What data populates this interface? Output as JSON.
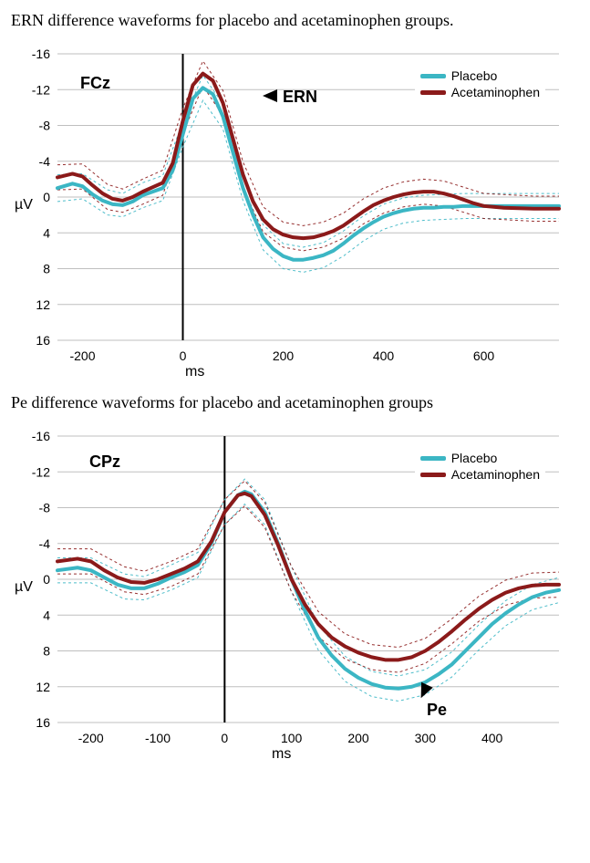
{
  "top_caption": "ERN difference waveforms for placebo and acetaminophen groups.",
  "bottom_caption": "Pe difference waveforms for placebo and acetaminophen groups",
  "legend": {
    "placebo": "Placebo",
    "acetaminophen": "Acetaminophen"
  },
  "colors": {
    "placebo": "#3bb6c4",
    "acetaminophen": "#8b1a1a",
    "placebo_band": "#3bb6c4",
    "acet_band": "#8b1a1a",
    "grid": "#bfbfbf",
    "axis": "#000000",
    "background": "#ffffff",
    "text": "#000000"
  },
  "style": {
    "main_line_width": 4,
    "band_line_width": 1,
    "band_dash": "3,3",
    "font_family_axis": "Arial, sans-serif",
    "tick_fontsize": 14,
    "electrode_fontsize": 18,
    "annotation_fontsize": 18
  },
  "chart1": {
    "type": "line",
    "electrode": "FCz",
    "annotation": "ERN",
    "annotation_pos_ms": 130,
    "annotation_pos_uv": -12,
    "y_unit": "µV",
    "x_unit": "ms",
    "xlim": [
      -250,
      750
    ],
    "ylim_display": [
      -16,
      16
    ],
    "y_inverted": true,
    "xticks": [
      -200,
      0,
      200,
      400,
      600
    ],
    "yticks": [
      -16,
      -12,
      -8,
      -4,
      0,
      4,
      8,
      12,
      16
    ],
    "grid": true,
    "series": {
      "placebo": [
        [
          -250,
          -1.0
        ],
        [
          -220,
          -1.5
        ],
        [
          -200,
          -1.2
        ],
        [
          -180,
          -0.3
        ],
        [
          -160,
          0.4
        ],
        [
          -140,
          0.8
        ],
        [
          -120,
          0.9
        ],
        [
          -100,
          0.5
        ],
        [
          -80,
          -0.2
        ],
        [
          -60,
          -0.6
        ],
        [
          -40,
          -1.0
        ],
        [
          -20,
          -3.0
        ],
        [
          0,
          -7.0
        ],
        [
          20,
          -11.0
        ],
        [
          40,
          -12.2
        ],
        [
          60,
          -11.5
        ],
        [
          80,
          -9.0
        ],
        [
          100,
          -5.0
        ],
        [
          120,
          -1.0
        ],
        [
          140,
          2.0
        ],
        [
          160,
          4.5
        ],
        [
          180,
          5.8
        ],
        [
          200,
          6.6
        ],
        [
          220,
          7.0
        ],
        [
          240,
          7.0
        ],
        [
          260,
          6.8
        ],
        [
          280,
          6.5
        ],
        [
          300,
          6.0
        ],
        [
          320,
          5.2
        ],
        [
          340,
          4.3
        ],
        [
          360,
          3.5
        ],
        [
          380,
          2.8
        ],
        [
          400,
          2.2
        ],
        [
          420,
          1.8
        ],
        [
          440,
          1.5
        ],
        [
          460,
          1.3
        ],
        [
          480,
          1.2
        ],
        [
          500,
          1.2
        ],
        [
          520,
          1.1
        ],
        [
          540,
          1.1
        ],
        [
          560,
          1.0
        ],
        [
          580,
          1.0
        ],
        [
          600,
          1.0
        ],
        [
          640,
          1.0
        ],
        [
          700,
          1.0
        ],
        [
          750,
          1.0
        ]
      ],
      "placebo_upper": [
        [
          -250,
          -2.5
        ],
        [
          -200,
          -2.6
        ],
        [
          -150,
          -0.8
        ],
        [
          -120,
          -0.4
        ],
        [
          -80,
          -1.6
        ],
        [
          -40,
          -2.4
        ],
        [
          0,
          -8.4
        ],
        [
          40,
          -13.6
        ],
        [
          80,
          -10.4
        ],
        [
          120,
          -2.4
        ],
        [
          160,
          3.1
        ],
        [
          200,
          5.2
        ],
        [
          240,
          5.6
        ],
        [
          280,
          5.1
        ],
        [
          320,
          3.8
        ],
        [
          360,
          2.1
        ],
        [
          400,
          0.8
        ],
        [
          440,
          0.1
        ],
        [
          480,
          -0.2
        ],
        [
          520,
          -0.3
        ],
        [
          560,
          -0.4
        ],
        [
          600,
          -0.4
        ],
        [
          700,
          -0.4
        ],
        [
          750,
          -0.4
        ]
      ],
      "placebo_lower": [
        [
          -250,
          0.5
        ],
        [
          -200,
          0.2
        ],
        [
          -150,
          2.0
        ],
        [
          -120,
          2.2
        ],
        [
          -80,
          1.2
        ],
        [
          -40,
          0.4
        ],
        [
          0,
          -5.6
        ],
        [
          40,
          -10.8
        ],
        [
          80,
          -7.6
        ],
        [
          120,
          0.4
        ],
        [
          160,
          5.9
        ],
        [
          200,
          8.0
        ],
        [
          240,
          8.4
        ],
        [
          280,
          7.9
        ],
        [
          320,
          6.6
        ],
        [
          360,
          4.9
        ],
        [
          400,
          3.6
        ],
        [
          440,
          2.9
        ],
        [
          480,
          2.6
        ],
        [
          520,
          2.5
        ],
        [
          560,
          2.4
        ],
        [
          600,
          2.4
        ],
        [
          700,
          2.4
        ],
        [
          750,
          2.4
        ]
      ],
      "acetaminophen": [
        [
          -250,
          -2.2
        ],
        [
          -220,
          -2.6
        ],
        [
          -200,
          -2.3
        ],
        [
          -180,
          -1.3
        ],
        [
          -160,
          -0.4
        ],
        [
          -140,
          0.2
        ],
        [
          -120,
          0.4
        ],
        [
          -100,
          0.0
        ],
        [
          -80,
          -0.6
        ],
        [
          -60,
          -1.1
        ],
        [
          -40,
          -1.6
        ],
        [
          -20,
          -3.8
        ],
        [
          0,
          -8.5
        ],
        [
          20,
          -12.5
        ],
        [
          40,
          -13.8
        ],
        [
          60,
          -13.0
        ],
        [
          80,
          -10.5
        ],
        [
          100,
          -6.5
        ],
        [
          120,
          -2.5
        ],
        [
          140,
          0.5
        ],
        [
          160,
          2.5
        ],
        [
          180,
          3.6
        ],
        [
          200,
          4.2
        ],
        [
          220,
          4.5
        ],
        [
          240,
          4.6
        ],
        [
          260,
          4.5
        ],
        [
          280,
          4.2
        ],
        [
          300,
          3.8
        ],
        [
          320,
          3.2
        ],
        [
          340,
          2.4
        ],
        [
          360,
          1.6
        ],
        [
          380,
          0.9
        ],
        [
          400,
          0.4
        ],
        [
          420,
          0.0
        ],
        [
          440,
          -0.3
        ],
        [
          460,
          -0.5
        ],
        [
          480,
          -0.6
        ],
        [
          500,
          -0.6
        ],
        [
          520,
          -0.4
        ],
        [
          540,
          -0.1
        ],
        [
          560,
          0.3
        ],
        [
          580,
          0.7
        ],
        [
          600,
          1.0
        ],
        [
          640,
          1.2
        ],
        [
          700,
          1.3
        ],
        [
          750,
          1.3
        ]
      ],
      "acet_upper": [
        [
          -250,
          -3.6
        ],
        [
          -200,
          -3.7
        ],
        [
          -150,
          -1.4
        ],
        [
          -120,
          -0.9
        ],
        [
          -80,
          -2.0
        ],
        [
          -40,
          -3.0
        ],
        [
          0,
          -9.9
        ],
        [
          40,
          -15.2
        ],
        [
          80,
          -11.9
        ],
        [
          120,
          -3.9
        ],
        [
          160,
          1.1
        ],
        [
          200,
          2.8
        ],
        [
          240,
          3.2
        ],
        [
          280,
          2.8
        ],
        [
          320,
          1.8
        ],
        [
          360,
          0.2
        ],
        [
          400,
          -1.0
        ],
        [
          440,
          -1.7
        ],
        [
          480,
          -2.0
        ],
        [
          520,
          -1.8
        ],
        [
          560,
          -1.1
        ],
        [
          600,
          -0.4
        ],
        [
          700,
          -0.1
        ],
        [
          750,
          -0.1
        ]
      ],
      "acet_lower": [
        [
          -250,
          -0.8
        ],
        [
          -200,
          -0.9
        ],
        [
          -150,
          1.4
        ],
        [
          -120,
          1.7
        ],
        [
          -80,
          0.8
        ],
        [
          -40,
          -0.2
        ],
        [
          0,
          -7.1
        ],
        [
          40,
          -12.4
        ],
        [
          80,
          -9.1
        ],
        [
          120,
          -1.1
        ],
        [
          160,
          3.9
        ],
        [
          200,
          5.6
        ],
        [
          240,
          6.0
        ],
        [
          280,
          5.6
        ],
        [
          320,
          4.6
        ],
        [
          360,
          3.0
        ],
        [
          400,
          1.8
        ],
        [
          440,
          1.1
        ],
        [
          480,
          0.8
        ],
        [
          520,
          1.0
        ],
        [
          560,
          1.7
        ],
        [
          600,
          2.4
        ],
        [
          700,
          2.7
        ],
        [
          750,
          2.7
        ]
      ]
    }
  },
  "chart2": {
    "type": "line",
    "electrode": "CPz",
    "annotation": "Pe",
    "annotation_pos_ms": 360,
    "annotation_pos_uv": 13,
    "y_unit": "µV",
    "x_unit": "ms",
    "xlim": [
      -250,
      500
    ],
    "ylim_display": [
      -16,
      16
    ],
    "y_inverted": true,
    "xticks": [
      -200,
      -100,
      0,
      100,
      200,
      300,
      400
    ],
    "yticks": [
      -16,
      -12,
      -8,
      -4,
      0,
      4,
      8,
      12,
      16
    ],
    "grid": true,
    "series": {
      "placebo": [
        [
          -250,
          -1.0
        ],
        [
          -220,
          -1.3
        ],
        [
          -200,
          -1.0
        ],
        [
          -180,
          -0.2
        ],
        [
          -160,
          0.6
        ],
        [
          -140,
          1.0
        ],
        [
          -120,
          1.0
        ],
        [
          -100,
          0.5
        ],
        [
          -80,
          -0.2
        ],
        [
          -60,
          -0.8
        ],
        [
          -40,
          -1.6
        ],
        [
          -20,
          -4.0
        ],
        [
          0,
          -7.5
        ],
        [
          20,
          -9.4
        ],
        [
          30,
          -9.8
        ],
        [
          40,
          -9.5
        ],
        [
          60,
          -7.5
        ],
        [
          80,
          -4.0
        ],
        [
          100,
          0.0
        ],
        [
          120,
          3.5
        ],
        [
          140,
          6.5
        ],
        [
          160,
          8.5
        ],
        [
          180,
          10.0
        ],
        [
          200,
          11.0
        ],
        [
          220,
          11.7
        ],
        [
          240,
          12.1
        ],
        [
          260,
          12.2
        ],
        [
          280,
          12.0
        ],
        [
          300,
          11.5
        ],
        [
          320,
          10.6
        ],
        [
          340,
          9.5
        ],
        [
          360,
          8.0
        ],
        [
          380,
          6.5
        ],
        [
          400,
          5.0
        ],
        [
          420,
          3.8
        ],
        [
          440,
          2.8
        ],
        [
          460,
          2.0
        ],
        [
          480,
          1.5
        ],
        [
          500,
          1.2
        ]
      ],
      "placebo_upper": [
        [
          -250,
          -2.4
        ],
        [
          -200,
          -2.4
        ],
        [
          -150,
          -0.6
        ],
        [
          -120,
          -0.3
        ],
        [
          -80,
          -1.6
        ],
        [
          -40,
          -3.0
        ],
        [
          0,
          -8.9
        ],
        [
          30,
          -11.2
        ],
        [
          60,
          -8.9
        ],
        [
          100,
          -1.4
        ],
        [
          140,
          5.1
        ],
        [
          180,
          8.6
        ],
        [
          220,
          10.3
        ],
        [
          260,
          10.8
        ],
        [
          300,
          10.1
        ],
        [
          340,
          8.1
        ],
        [
          380,
          5.1
        ],
        [
          420,
          2.4
        ],
        [
          460,
          0.6
        ],
        [
          500,
          -0.2
        ]
      ],
      "placebo_lower": [
        [
          -250,
          0.4
        ],
        [
          -200,
          0.4
        ],
        [
          -150,
          2.2
        ],
        [
          -120,
          2.3
        ],
        [
          -80,
          1.2
        ],
        [
          -40,
          -0.2
        ],
        [
          0,
          -6.1
        ],
        [
          30,
          -8.4
        ],
        [
          60,
          -6.1
        ],
        [
          100,
          1.4
        ],
        [
          140,
          7.9
        ],
        [
          180,
          11.4
        ],
        [
          220,
          13.1
        ],
        [
          260,
          13.6
        ],
        [
          300,
          12.9
        ],
        [
          340,
          10.9
        ],
        [
          380,
          7.9
        ],
        [
          420,
          5.2
        ],
        [
          460,
          3.4
        ],
        [
          500,
          2.6
        ]
      ],
      "acetaminophen": [
        [
          -250,
          -2.0
        ],
        [
          -220,
          -2.3
        ],
        [
          -200,
          -2.0
        ],
        [
          -180,
          -1.0
        ],
        [
          -160,
          -0.2
        ],
        [
          -140,
          0.3
        ],
        [
          -120,
          0.4
        ],
        [
          -100,
          0.0
        ],
        [
          -80,
          -0.6
        ],
        [
          -60,
          -1.2
        ],
        [
          -40,
          -2.0
        ],
        [
          -20,
          -4.2
        ],
        [
          0,
          -7.5
        ],
        [
          20,
          -9.4
        ],
        [
          30,
          -9.6
        ],
        [
          40,
          -9.3
        ],
        [
          60,
          -7.2
        ],
        [
          80,
          -3.8
        ],
        [
          100,
          0.0
        ],
        [
          120,
          2.8
        ],
        [
          140,
          5.0
        ],
        [
          160,
          6.5
        ],
        [
          180,
          7.5
        ],
        [
          200,
          8.2
        ],
        [
          220,
          8.7
        ],
        [
          240,
          9.0
        ],
        [
          260,
          9.0
        ],
        [
          280,
          8.7
        ],
        [
          300,
          8.0
        ],
        [
          320,
          7.0
        ],
        [
          340,
          5.8
        ],
        [
          360,
          4.5
        ],
        [
          380,
          3.3
        ],
        [
          400,
          2.3
        ],
        [
          420,
          1.5
        ],
        [
          440,
          1.0
        ],
        [
          460,
          0.7
        ],
        [
          480,
          0.6
        ],
        [
          500,
          0.6
        ]
      ],
      "acet_upper": [
        [
          -250,
          -3.4
        ],
        [
          -200,
          -3.4
        ],
        [
          -150,
          -1.4
        ],
        [
          -120,
          -0.9
        ],
        [
          -80,
          -2.0
        ],
        [
          -40,
          -3.4
        ],
        [
          0,
          -8.9
        ],
        [
          30,
          -11.0
        ],
        [
          60,
          -8.6
        ],
        [
          100,
          -1.4
        ],
        [
          140,
          3.6
        ],
        [
          180,
          6.1
        ],
        [
          220,
          7.3
        ],
        [
          260,
          7.6
        ],
        [
          300,
          6.6
        ],
        [
          340,
          4.4
        ],
        [
          380,
          1.9
        ],
        [
          420,
          0.1
        ],
        [
          460,
          -0.7
        ],
        [
          500,
          -0.8
        ]
      ],
      "acet_lower": [
        [
          -250,
          -0.6
        ],
        [
          -200,
          -0.6
        ],
        [
          -150,
          1.4
        ],
        [
          -120,
          1.7
        ],
        [
          -80,
          0.8
        ],
        [
          -40,
          -0.6
        ],
        [
          0,
          -6.1
        ],
        [
          30,
          -8.2
        ],
        [
          60,
          -5.8
        ],
        [
          100,
          1.4
        ],
        [
          140,
          6.4
        ],
        [
          180,
          8.9
        ],
        [
          220,
          10.1
        ],
        [
          260,
          10.4
        ],
        [
          300,
          9.4
        ],
        [
          340,
          7.2
        ],
        [
          380,
          4.7
        ],
        [
          420,
          2.9
        ],
        [
          460,
          2.1
        ],
        [
          500,
          2.0
        ]
      ]
    }
  }
}
